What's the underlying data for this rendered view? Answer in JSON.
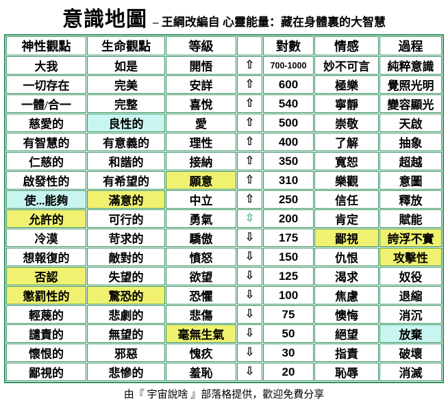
{
  "title": {
    "main": "意識地圖",
    "sub": "– 王綱改編自 心靈能量：藏在身體裏的大智慧"
  },
  "footer": {
    "text": "由『 宇宙說啥 』部落格提供，歡迎免費分享"
  },
  "colors": {
    "border_green": "#2E8F5B",
    "highlight_yellow": "#F0F170",
    "highlight_cyan": "#C9F5F0",
    "arrow_green": "#55B380"
  },
  "arrow_glyphs": {
    "up": "⇧",
    "down": "⇩",
    "updown": "⇳"
  },
  "chart_data": {
    "type": "table",
    "title": "意識地圖",
    "columns": [
      "神性觀點",
      "生命觀點",
      "等級",
      "",
      "對數",
      "情感",
      "過程"
    ],
    "rows": [
      {
        "god": {
          "t": "大我"
        },
        "life": {
          "t": "如是"
        },
        "level": {
          "t": "開悟"
        },
        "arrow": "up",
        "log": "700-1000",
        "emotion": {
          "t": "妙不可言"
        },
        "process": {
          "t": "純粹意識"
        }
      },
      {
        "god": {
          "t": "一切存在"
        },
        "life": {
          "t": "完美"
        },
        "level": {
          "t": "安詳"
        },
        "arrow": "up",
        "log": "600",
        "emotion": {
          "t": "極樂"
        },
        "process": {
          "t": "覺照光明"
        }
      },
      {
        "god": {
          "t": "一體/合一"
        },
        "life": {
          "t": "完整"
        },
        "level": {
          "t": "喜悅"
        },
        "arrow": "up",
        "log": "540",
        "emotion": {
          "t": "寧靜"
        },
        "process": {
          "t": "變容顯光"
        }
      },
      {
        "god": {
          "t": "慈愛的"
        },
        "life": {
          "t": "良性的",
          "bg": "c"
        },
        "level": {
          "t": "愛"
        },
        "arrow": "up",
        "log": "500",
        "emotion": {
          "t": "崇敬"
        },
        "process": {
          "t": "天啟"
        }
      },
      {
        "god": {
          "t": "有智慧的"
        },
        "life": {
          "t": "有意義的"
        },
        "level": {
          "t": "理性"
        },
        "arrow": "up",
        "log": "400",
        "emotion": {
          "t": "了解"
        },
        "process": {
          "t": "抽象"
        }
      },
      {
        "god": {
          "t": "仁慈的"
        },
        "life": {
          "t": "和諧的"
        },
        "level": {
          "t": "接納"
        },
        "arrow": "up",
        "log": "350",
        "emotion": {
          "t": "寬恕"
        },
        "process": {
          "t": "超越"
        }
      },
      {
        "god": {
          "t": "啟發性的"
        },
        "life": {
          "t": "有希望的"
        },
        "level": {
          "t": "願意",
          "bg": "y"
        },
        "arrow": "up",
        "log": "310",
        "emotion": {
          "t": "樂觀"
        },
        "process": {
          "t": "意圖"
        }
      },
      {
        "god": {
          "t": "使...能夠",
          "bg": "c"
        },
        "life": {
          "t": "滿意的",
          "bg": "y"
        },
        "level": {
          "t": "中立"
        },
        "arrow": "up",
        "log": "250",
        "emotion": {
          "t": "信任"
        },
        "process": {
          "t": "釋放"
        }
      },
      {
        "god": {
          "t": "允許的",
          "bg": "y"
        },
        "life": {
          "t": "可行的"
        },
        "level": {
          "t": "勇氣"
        },
        "arrow": "updown",
        "log": "200",
        "emotion": {
          "t": "肯定"
        },
        "process": {
          "t": "賦能"
        }
      },
      {
        "god": {
          "t": "冷漠"
        },
        "life": {
          "t": "苛求的"
        },
        "level": {
          "t": "驕傲"
        },
        "arrow": "down",
        "log": "175",
        "emotion": {
          "t": "鄙視",
          "bg": "y"
        },
        "process": {
          "t": "誇浮不實",
          "bg": "y"
        }
      },
      {
        "god": {
          "t": "想報復的"
        },
        "life": {
          "t": "敵對的"
        },
        "level": {
          "t": "憤怒"
        },
        "arrow": "down",
        "log": "150",
        "emotion": {
          "t": "仇恨"
        },
        "process": {
          "t": "攻擊性",
          "bg": "y"
        }
      },
      {
        "god": {
          "t": "否認",
          "bg": "y"
        },
        "life": {
          "t": "失望的"
        },
        "level": {
          "t": "欲望"
        },
        "arrow": "down",
        "log": "125",
        "emotion": {
          "t": "渴求"
        },
        "process": {
          "t": "奴役"
        }
      },
      {
        "god": {
          "t": "懲罰性的",
          "bg": "y"
        },
        "life": {
          "t": "驚恐的",
          "bg": "y"
        },
        "level": {
          "t": "恐懼"
        },
        "arrow": "down",
        "log": "100",
        "emotion": {
          "t": "焦慮"
        },
        "process": {
          "t": "退縮"
        }
      },
      {
        "god": {
          "t": "輕蔑的"
        },
        "life": {
          "t": "悲劇的"
        },
        "level": {
          "t": "悲傷"
        },
        "arrow": "down",
        "log": "75",
        "emotion": {
          "t": "懊悔"
        },
        "process": {
          "t": "消沉"
        }
      },
      {
        "god": {
          "t": "譴責的"
        },
        "life": {
          "t": "無望的"
        },
        "level": {
          "t": "毫無生氣",
          "bg": "y"
        },
        "arrow": "down",
        "log": "50",
        "emotion": {
          "t": "絕望"
        },
        "process": {
          "t": "放棄",
          "bg": "c"
        }
      },
      {
        "god": {
          "t": "懷恨的"
        },
        "life": {
          "t": "邪惡"
        },
        "level": {
          "t": "愧疚"
        },
        "arrow": "down",
        "log": "30",
        "emotion": {
          "t": "指責"
        },
        "process": {
          "t": "破壞"
        }
      },
      {
        "god": {
          "t": "鄙視的"
        },
        "life": {
          "t": "悲慘的"
        },
        "level": {
          "t": "羞恥"
        },
        "arrow": "down",
        "log": "20",
        "emotion": {
          "t": "恥辱"
        },
        "process": {
          "t": "消滅"
        }
      }
    ]
  }
}
